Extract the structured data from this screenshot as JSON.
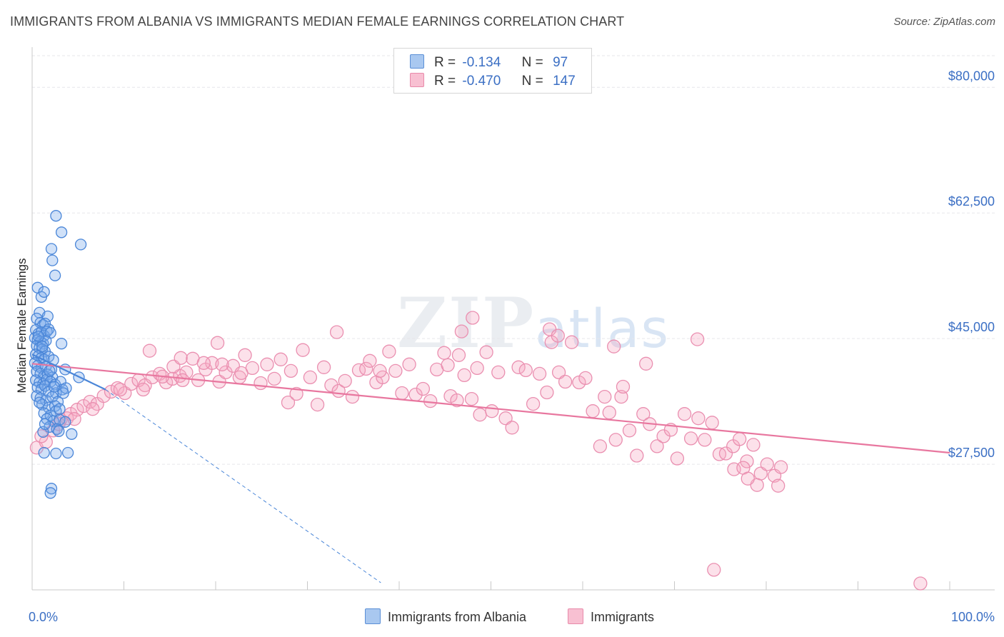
{
  "header": {
    "title": "IMMIGRANTS FROM ALBANIA VS IMMIGRANTS MEDIAN FEMALE EARNINGS CORRELATION CHART",
    "source": "Source: ZipAtlas.com"
  },
  "watermark": {
    "zip": "ZIP",
    "atlas": "atlas"
  },
  "legend": {
    "rows": [
      {
        "r_label": "R =",
        "r_value": "-0.134",
        "n_label": "N =",
        "n_value": "97",
        "color": "#a9c8f0",
        "border": "#5b8fd6"
      },
      {
        "r_label": "R =",
        "r_value": "-0.470",
        "n_label": "N =",
        "n_value": "147",
        "color": "#f8c0d2",
        "border": "#e88aaa"
      }
    ]
  },
  "bottom_legend": {
    "items": [
      {
        "label": "Immigrants from Albania",
        "color": "#a9c8f0",
        "border": "#5b8fd6"
      },
      {
        "label": "Immigrants",
        "color": "#f8c0d2",
        "border": "#e88aaa"
      }
    ]
  },
  "chart_data": {
    "type": "scatter",
    "title": "IMMIGRANTS FROM ALBANIA VS IMMIGRANTS MEDIAN FEMALE EARNINGS CORRELATION CHART",
    "xlabel": "",
    "ylabel": "Median Female Earnings",
    "xlim": [
      0,
      100
    ],
    "ylim": [
      10000,
      85000
    ],
    "x_tick_labels": [
      "0.0%",
      "100.0%"
    ],
    "y_ticks": [
      27500,
      45000,
      62500,
      80000
    ],
    "y_tick_labels": [
      "$27,500",
      "$45,000",
      "$62,500",
      "$80,000"
    ],
    "grid": true,
    "colors": {
      "albania": "#4a86d8",
      "immigrants": "#e8779f"
    },
    "series": [
      {
        "name": "Immigrants from Albania",
        "trend": {
          "x": [
            0.0,
            8.0
          ],
          "y": [
            42800,
            37900
          ]
        },
        "trend_extension": {
          "x": [
            8.0,
            38.0
          ],
          "y": [
            37900,
            11000
          ]
        },
        "points": [
          [
            0.6,
            52100
          ],
          [
            1.0,
            50800
          ],
          [
            1.3,
            51500
          ],
          [
            0.8,
            48600
          ],
          [
            1.7,
            48100
          ],
          [
            0.5,
            47800
          ],
          [
            0.9,
            47200
          ],
          [
            1.2,
            46900
          ],
          [
            1.4,
            47100
          ],
          [
            1.8,
            46300
          ],
          [
            0.4,
            46200
          ],
          [
            0.7,
            45700
          ],
          [
            1.0,
            45900
          ],
          [
            1.3,
            45400
          ],
          [
            1.6,
            46000
          ],
          [
            2.0,
            45800
          ],
          [
            0.3,
            45100
          ],
          [
            0.6,
            44800
          ],
          [
            0.9,
            44600
          ],
          [
            1.2,
            44300
          ],
          [
            1.5,
            44700
          ],
          [
            0.5,
            44000
          ],
          [
            0.8,
            43700
          ],
          [
            1.1,
            43500
          ],
          [
            1.4,
            43200
          ],
          [
            3.2,
            44300
          ],
          [
            0.4,
            42800
          ],
          [
            0.7,
            42600
          ],
          [
            1.0,
            42300
          ],
          [
            1.3,
            42100
          ],
          [
            1.8,
            42500
          ],
          [
            2.3,
            42000
          ],
          [
            0.3,
            41600
          ],
          [
            0.6,
            41200
          ],
          [
            1.0,
            40900
          ],
          [
            1.5,
            41100
          ],
          [
            2.1,
            40700
          ],
          [
            0.5,
            40400
          ],
          [
            0.9,
            40100
          ],
          [
            1.3,
            39800
          ],
          [
            1.7,
            40000
          ],
          [
            2.2,
            39600
          ],
          [
            3.6,
            40700
          ],
          [
            5.1,
            39600
          ],
          [
            0.4,
            39200
          ],
          [
            0.8,
            38900
          ],
          [
            1.2,
            38700
          ],
          [
            1.6,
            39300
          ],
          [
            2.0,
            39000
          ],
          [
            2.5,
            38600
          ],
          [
            3.1,
            39000
          ],
          [
            0.6,
            38200
          ],
          [
            1.0,
            37900
          ],
          [
            1.4,
            38400
          ],
          [
            1.8,
            37600
          ],
          [
            2.6,
            37400
          ],
          [
            3.3,
            37900
          ],
          [
            3.7,
            38100
          ],
          [
            0.5,
            37000
          ],
          [
            0.9,
            36700
          ],
          [
            1.5,
            36400
          ],
          [
            2.2,
            36900
          ],
          [
            2.8,
            36200
          ],
          [
            3.4,
            37400
          ],
          [
            1.1,
            35800
          ],
          [
            1.8,
            35400
          ],
          [
            2.5,
            35600
          ],
          [
            1.3,
            34600
          ],
          [
            2.0,
            34300
          ],
          [
            2.6,
            34900
          ],
          [
            1.6,
            33800
          ],
          [
            2.3,
            33500
          ],
          [
            3.0,
            33700
          ],
          [
            3.6,
            33400
          ],
          [
            1.9,
            32700
          ],
          [
            2.7,
            32400
          ],
          [
            1.2,
            32000
          ],
          [
            4.3,
            31700
          ],
          [
            1.3,
            29100
          ],
          [
            2.6,
            29000
          ],
          [
            3.9,
            29100
          ],
          [
            2.1,
            24100
          ],
          [
            2.0,
            23500
          ],
          [
            2.6,
            62100
          ],
          [
            3.2,
            59800
          ],
          [
            2.1,
            57500
          ],
          [
            5.3,
            58100
          ],
          [
            2.2,
            55900
          ],
          [
            2.5,
            53800
          ],
          [
            0.7,
            45300
          ],
          [
            1.1,
            43900
          ],
          [
            1.9,
            40500
          ],
          [
            2.4,
            38300
          ],
          [
            0.8,
            36100
          ],
          [
            3.0,
            35200
          ],
          [
            1.4,
            33100
          ],
          [
            2.9,
            32100
          ]
        ]
      },
      {
        "name": "Immigrants",
        "trend": {
          "x": [
            0.0,
            100.0
          ],
          "y": [
            41500,
            29100
          ]
        },
        "points": [
          [
            0.5,
            29800
          ],
          [
            1.5,
            30600
          ],
          [
            2.3,
            32200
          ],
          [
            3.1,
            33700
          ],
          [
            3.8,
            33900
          ],
          [
            4.2,
            34500
          ],
          [
            4.9,
            35100
          ],
          [
            5.6,
            35600
          ],
          [
            6.3,
            36200
          ],
          [
            7.1,
            35900
          ],
          [
            7.8,
            37000
          ],
          [
            8.6,
            37600
          ],
          [
            9.3,
            38100
          ],
          [
            10.1,
            37400
          ],
          [
            10.8,
            38700
          ],
          [
            11.6,
            39200
          ],
          [
            12.3,
            38500
          ],
          [
            13.1,
            39600
          ],
          [
            13.9,
            40100
          ],
          [
            14.6,
            38900
          ],
          [
            15.3,
            39400
          ],
          [
            16.1,
            39800
          ],
          [
            12.8,
            43300
          ],
          [
            15.4,
            41100
          ],
          [
            16.2,
            42300
          ],
          [
            16.8,
            40300
          ],
          [
            17.5,
            42200
          ],
          [
            18.1,
            39200
          ],
          [
            18.9,
            40700
          ],
          [
            19.6,
            41600
          ],
          [
            20.4,
            39000
          ],
          [
            20.2,
            44400
          ],
          [
            21.1,
            40300
          ],
          [
            21.9,
            41200
          ],
          [
            22.6,
            39600
          ],
          [
            23.2,
            42700
          ],
          [
            24.0,
            40900
          ],
          [
            24.9,
            38800
          ],
          [
            25.6,
            41400
          ],
          [
            26.4,
            39400
          ],
          [
            27.1,
            42100
          ],
          [
            27.9,
            36100
          ],
          [
            28.2,
            40500
          ],
          [
            28.8,
            37300
          ],
          [
            29.5,
            43400
          ],
          [
            30.3,
            39600
          ],
          [
            31.1,
            35800
          ],
          [
            31.8,
            41000
          ],
          [
            32.6,
            38500
          ],
          [
            33.4,
            37700
          ],
          [
            34.1,
            39100
          ],
          [
            34.9,
            36900
          ],
          [
            35.6,
            40600
          ],
          [
            36.4,
            40800
          ],
          [
            33.2,
            45900
          ],
          [
            36.8,
            41900
          ],
          [
            37.5,
            38900
          ],
          [
            38.2,
            39600
          ],
          [
            38.9,
            43200
          ],
          [
            39.6,
            40500
          ],
          [
            40.3,
            37400
          ],
          [
            41.1,
            41400
          ],
          [
            41.8,
            37200
          ],
          [
            42.6,
            38000
          ],
          [
            43.4,
            36300
          ],
          [
            44.1,
            40700
          ],
          [
            44.9,
            43000
          ],
          [
            45.6,
            37000
          ],
          [
            46.3,
            36400
          ],
          [
            47.1,
            39900
          ],
          [
            47.9,
            36600
          ],
          [
            48.5,
            40900
          ],
          [
            48.8,
            34400
          ],
          [
            49.5,
            43100
          ],
          [
            50.1,
            34900
          ],
          [
            50.8,
            40300
          ],
          [
            51.6,
            33900
          ],
          [
            46.5,
            42700
          ],
          [
            46.8,
            46000
          ],
          [
            48.0,
            47900
          ],
          [
            52.3,
            32600
          ],
          [
            53.0,
            41000
          ],
          [
            53.8,
            40600
          ],
          [
            54.6,
            35900
          ],
          [
            55.3,
            40100
          ],
          [
            56.1,
            37500
          ],
          [
            56.4,
            46300
          ],
          [
            56.6,
            44500
          ],
          [
            57.3,
            45400
          ],
          [
            57.4,
            40300
          ],
          [
            58.1,
            39000
          ],
          [
            58.8,
            44500
          ],
          [
            59.6,
            38900
          ],
          [
            60.3,
            39500
          ],
          [
            61.1,
            34900
          ],
          [
            61.9,
            30000
          ],
          [
            62.4,
            36900
          ],
          [
            62.9,
            34700
          ],
          [
            63.4,
            43900
          ],
          [
            63.6,
            30900
          ],
          [
            64.2,
            36900
          ],
          [
            64.4,
            38300
          ],
          [
            65.1,
            32200
          ],
          [
            65.9,
            28700
          ],
          [
            66.6,
            34500
          ],
          [
            66.9,
            41500
          ],
          [
            67.3,
            33100
          ],
          [
            68.1,
            30000
          ],
          [
            68.8,
            31400
          ],
          [
            69.6,
            32300
          ],
          [
            70.3,
            28300
          ],
          [
            71.1,
            34500
          ],
          [
            71.8,
            31100
          ],
          [
            72.5,
            44900
          ],
          [
            72.6,
            33900
          ],
          [
            73.3,
            30900
          ],
          [
            74.1,
            33300
          ],
          [
            74.9,
            28900
          ],
          [
            75.6,
            29000
          ],
          [
            76.4,
            30000
          ],
          [
            77.1,
            31000
          ],
          [
            77.9,
            27900
          ],
          [
            78.6,
            30200
          ],
          [
            79.4,
            26200
          ],
          [
            80.1,
            27500
          ],
          [
            80.9,
            25900
          ],
          [
            81.6,
            27100
          ],
          [
            74.3,
            12800
          ],
          [
            76.5,
            26800
          ],
          [
            77.5,
            27000
          ],
          [
            79.0,
            24600
          ],
          [
            81.3,
            24500
          ],
          [
            78.0,
            25500
          ],
          [
            1.0,
            31400
          ],
          [
            2.9,
            33100
          ],
          [
            4.6,
            33800
          ],
          [
            6.6,
            35200
          ],
          [
            9.6,
            37900
          ],
          [
            12.1,
            37900
          ],
          [
            14.2,
            39700
          ],
          [
            16.4,
            39200
          ],
          [
            18.7,
            41600
          ],
          [
            20.7,
            41400
          ],
          [
            22.8,
            40200
          ],
          [
            37.9,
            40500
          ],
          [
            45.3,
            41300
          ],
          [
            96.8,
            10900
          ]
        ]
      }
    ]
  }
}
